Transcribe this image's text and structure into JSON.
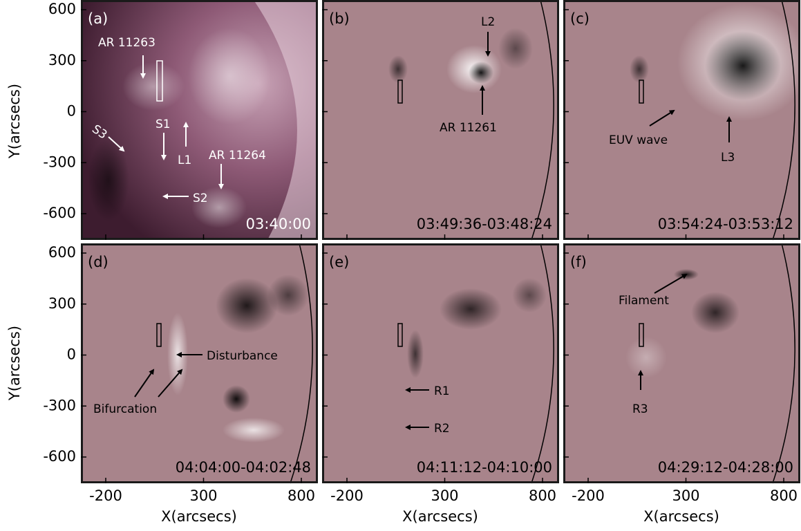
{
  "axes": {
    "xlabel": "X(arcsecs)",
    "ylabel": "Y(arcsecs)",
    "xticks": [
      -200,
      300,
      800
    ],
    "yticks": [
      600,
      300,
      0,
      -300,
      -600
    ]
  },
  "panels": [
    {
      "label": "(a)",
      "time": "03:40:00",
      "annotations": [
        "AR 11263",
        "S3",
        "S1",
        "L1",
        "AR 11264",
        "S2"
      ]
    },
    {
      "label": "(b)",
      "time": "03:49:36-03:48:24",
      "annotations": [
        "L2",
        "AR 11261"
      ]
    },
    {
      "label": "(c)",
      "time": "03:54:24-03:53:12",
      "annotations": [
        "EUV wave",
        "L3"
      ]
    },
    {
      "label": "(d)",
      "time": "04:04:00-04:02:48",
      "annotations": [
        "Disturbance",
        "Bifurcation"
      ]
    },
    {
      "label": "(e)",
      "time": "04:11:12-04:10:00",
      "annotations": [
        "R1",
        "R2"
      ]
    },
    {
      "label": "(f)",
      "time": "04:29:12-04:28:00",
      "annotations": [
        "Filament",
        "R3"
      ]
    }
  ]
}
